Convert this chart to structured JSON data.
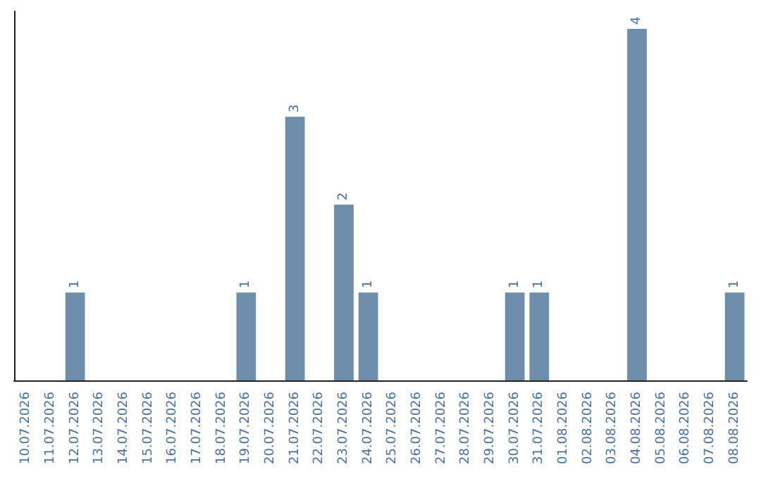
{
  "chart_data": {
    "type": "bar",
    "categories": [
      "10.07.2026",
      "11.07.2026",
      "12.07.2026",
      "13.07.2026",
      "14.07.2026",
      "15.07.2026",
      "16.07.2026",
      "17.07.2026",
      "18.07.2026",
      "19.07.2026",
      "20.07.2026",
      "21.07.2026",
      "22.07.2026",
      "23.07.2026",
      "24.07.2026",
      "25.07.2026",
      "26.07.2026",
      "27.07.2026",
      "28.07.2026",
      "29.07.2026",
      "30.07.2026",
      "31.07.2026",
      "01.08.2026",
      "02.08.2026",
      "03.08.2026",
      "04.08.2026",
      "05.08.2026",
      "06.08.2026",
      "07.08.2026",
      "08.08.2026"
    ],
    "values": [
      0,
      0,
      1,
      0,
      0,
      0,
      0,
      0,
      0,
      1,
      0,
      3,
      0,
      2,
      1,
      0,
      0,
      0,
      0,
      0,
      1,
      1,
      0,
      0,
      0,
      4,
      0,
      0,
      0,
      1
    ],
    "value_labels": [
      null,
      null,
      "1",
      null,
      null,
      null,
      null,
      null,
      null,
      "1",
      null,
      "3",
      null,
      "2",
      "1",
      null,
      null,
      null,
      null,
      null,
      "1",
      "1",
      null,
      null,
      null,
      "4",
      null,
      null,
      null,
      "1"
    ],
    "color": "#6d8dab",
    "grid": false,
    "tick_labels": "x"
  }
}
